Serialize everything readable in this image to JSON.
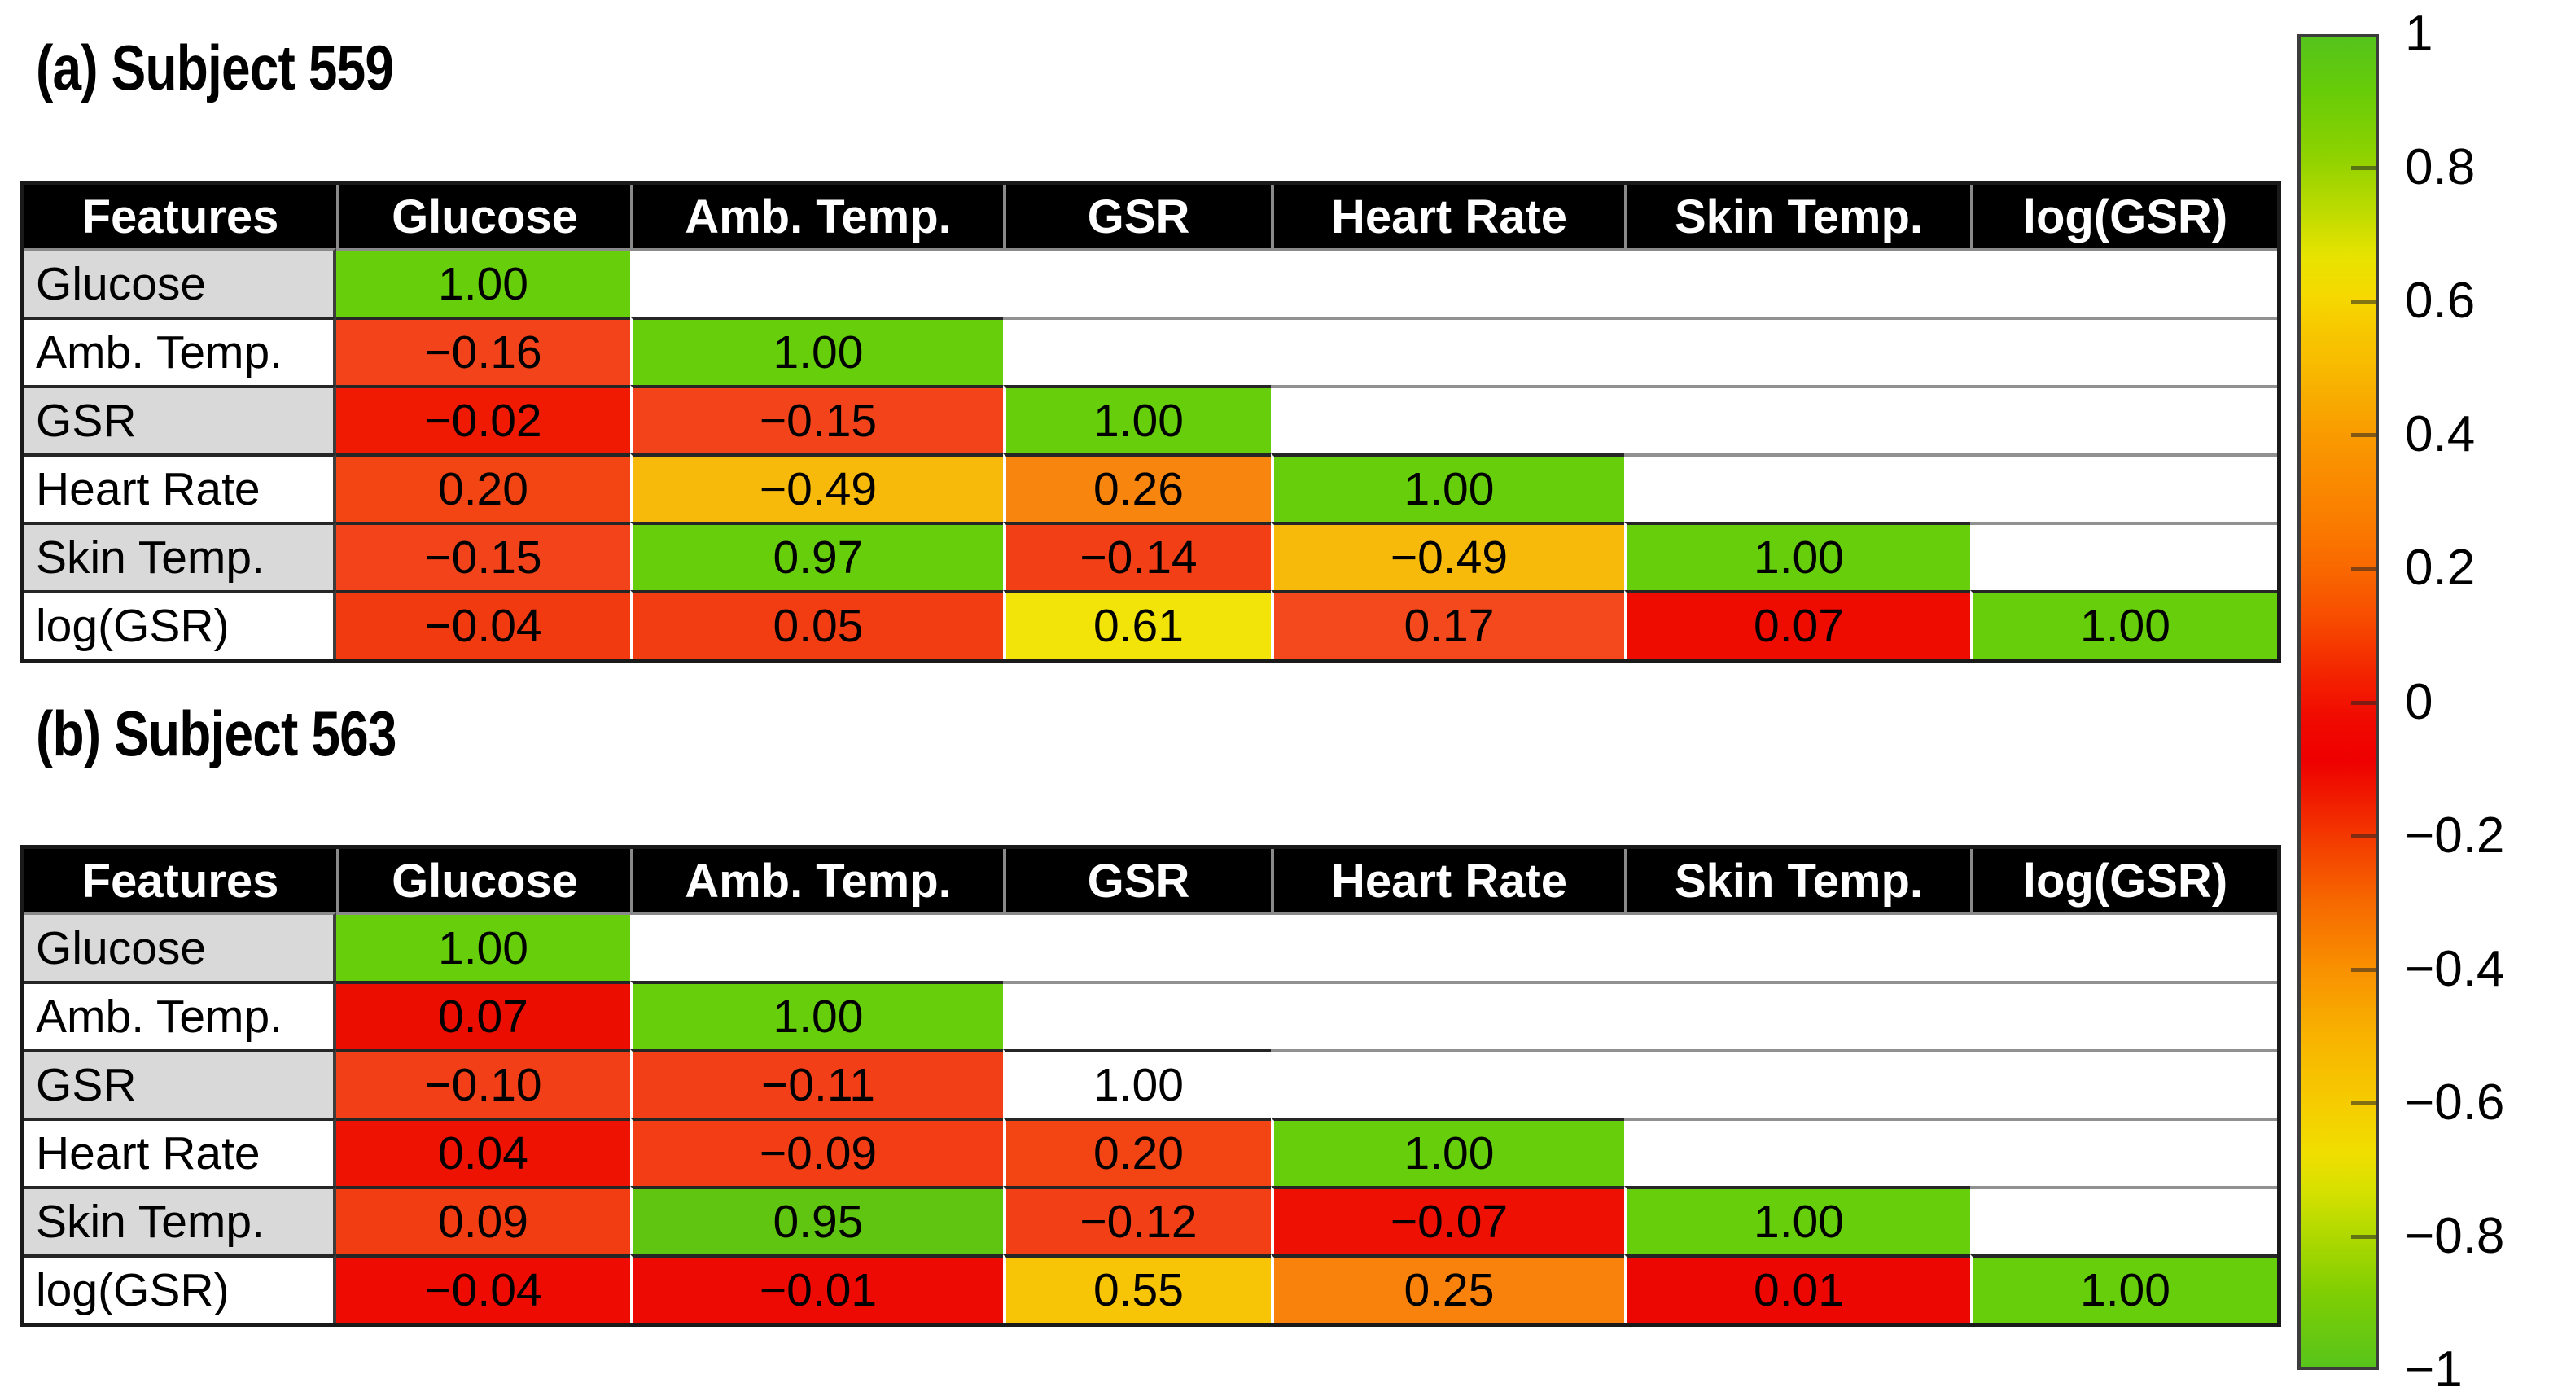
{
  "chart_data": {
    "type": "heatmap",
    "description": "Lower-triangle pairwise correlation matrices between physiological features for two subjects; cells colored by correlation magnitude (red near 0, orange/yellow mid, green near 1).",
    "panels": [
      {
        "id": "a",
        "title": "(a) Subject 559",
        "header": [
          "Features",
          "Glucose",
          "Amb. Temp.",
          "GSR",
          "Heart Rate",
          "Skin Temp.",
          "log(GSR)"
        ],
        "rows": [
          {
            "label": "Glucose",
            "cells": [
              {
                "t": "1.00",
                "n": 1.0,
                "bg": "#67ce0c"
              },
              null,
              null,
              null,
              null,
              null
            ]
          },
          {
            "label": "Amb. Temp.",
            "cells": [
              {
                "t": "−0.16",
                "n": -0.16,
                "bg": "#f3431a"
              },
              {
                "t": "1.00",
                "n": 1.0,
                "bg": "#67ce0c"
              },
              null,
              null,
              null,
              null
            ]
          },
          {
            "label": "GSR",
            "cells": [
              {
                "t": "−0.02",
                "n": -0.02,
                "bg": "#f01a02"
              },
              {
                "t": "−0.15",
                "n": -0.15,
                "bg": "#f3431a"
              },
              {
                "t": "1.00",
                "n": 1.0,
                "bg": "#67ce0c"
              },
              null,
              null,
              null
            ]
          },
          {
            "label": "Heart Rate",
            "cells": [
              {
                "t": "0.20",
                "n": 0.2,
                "bg": "#f34414"
              },
              {
                "t": "−0.49",
                "n": -0.49,
                "bg": "#f7ba0b"
              },
              {
                "t": "0.26",
                "n": 0.26,
                "bg": "#f8850d"
              },
              {
                "t": "1.00",
                "n": 1.0,
                "bg": "#67ce0c"
              },
              null,
              null
            ]
          },
          {
            "label": "Skin Temp.",
            "cells": [
              {
                "t": "−0.15",
                "n": -0.15,
                "bg": "#f3431a"
              },
              {
                "t": "0.97",
                "n": 0.97,
                "bg": "#67ce0c"
              },
              {
                "t": "−0.14",
                "n": -0.14,
                "bg": "#f33f15"
              },
              {
                "t": "−0.49",
                "n": -0.49,
                "bg": "#f7ba0b"
              },
              {
                "t": "1.00",
                "n": 1.0,
                "bg": "#67ce0c"
              },
              null
            ]
          },
          {
            "label": "log(GSR)",
            "cells": [
              {
                "t": "−0.04",
                "n": -0.04,
                "bg": "#f23a10"
              },
              {
                "t": "0.05",
                "n": 0.05,
                "bg": "#f23c12"
              },
              {
                "t": "0.61",
                "n": 0.61,
                "bg": "#f2e308"
              },
              {
                "t": "0.17",
                "n": 0.17,
                "bg": "#f4491c"
              },
              {
                "t": "0.07",
                "n": 0.07,
                "bg": "#ee0b00"
              },
              {
                "t": "1.00",
                "n": 1.0,
                "bg": "#67ce0c"
              }
            ]
          }
        ]
      },
      {
        "id": "b",
        "title": "(b) Subject 563",
        "header": [
          "Features",
          "Glucose",
          "Amb. Temp.",
          "GSR",
          "Heart Rate",
          "Skin Temp.",
          "log(GSR)"
        ],
        "rows": [
          {
            "label": "Glucose",
            "cells": [
              {
                "t": "1.00",
                "n": 1.0,
                "bg": "#67ce0c"
              },
              null,
              null,
              null,
              null,
              null
            ]
          },
          {
            "label": "Amb. Temp.",
            "cells": [
              {
                "t": "0.07",
                "n": 0.07,
                "bg": "#ec0d01"
              },
              {
                "t": "1.00",
                "n": 1.0,
                "bg": "#67ce0c"
              },
              null,
              null,
              null,
              null
            ]
          },
          {
            "label": "GSR",
            "cells": [
              {
                "t": "−0.10",
                "n": -0.1,
                "bg": "#f23f17"
              },
              {
                "t": "−0.11",
                "n": -0.11,
                "bg": "#f23f17"
              },
              {
                "t": "1.00",
                "n": 1.0,
                "bg": "#ffffff"
              },
              null,
              null,
              null
            ]
          },
          {
            "label": "Heart Rate",
            "cells": [
              {
                "t": "0.04",
                "n": 0.04,
                "bg": "#ee1203"
              },
              {
                "t": "−0.09",
                "n": -0.09,
                "bg": "#f23d15"
              },
              {
                "t": "0.20",
                "n": 0.2,
                "bg": "#f34414"
              },
              {
                "t": "1.00",
                "n": 1.0,
                "bg": "#67ce0c"
              },
              null,
              null
            ]
          },
          {
            "label": "Skin Temp.",
            "cells": [
              {
                "t": "0.09",
                "n": 0.09,
                "bg": "#f23d12"
              },
              {
                "t": "0.95",
                "n": 0.95,
                "bg": "#60c511"
              },
              {
                "t": "−0.12",
                "n": -0.12,
                "bg": "#f23f15"
              },
              {
                "t": "−0.07",
                "n": -0.07,
                "bg": "#ee1103"
              },
              {
                "t": "1.00",
                "n": 1.0,
                "bg": "#67ce0c"
              },
              null
            ]
          },
          {
            "label": "log(GSR)",
            "cells": [
              {
                "t": "−0.04",
                "n": -0.04,
                "bg": "#ee0c02"
              },
              {
                "t": "−0.01",
                "n": -0.01,
                "bg": "#ed0a02"
              },
              {
                "t": "0.55",
                "n": 0.55,
                "bg": "#f7c406"
              },
              {
                "t": "0.25",
                "n": 0.25,
                "bg": "#f8820b"
              },
              {
                "t": "0.01",
                "n": 0.01,
                "bg": "#ec0702"
              },
              {
                "t": "1.00",
                "n": 1.0,
                "bg": "#67ce0c"
              }
            ]
          }
        ]
      }
    ],
    "colorbar": {
      "min": -1,
      "max": 1,
      "tick_labels": [
        "1",
        "0.8",
        "0.6",
        "0.4",
        "0.2",
        "0",
        "−0.2",
        "−0.4",
        "−0.6",
        "−0.8",
        "−1"
      ]
    },
    "colors": {
      "header_bg": "#000000",
      "header_text": "#ffffff",
      "row_label_alt_bg": "#d9d9d9",
      "table_border": "#1a1a1a",
      "full_correlation_green": "#67ce0c",
      "zero_correlation_red": "#ee0b00",
      "background": "#ffffff"
    }
  }
}
